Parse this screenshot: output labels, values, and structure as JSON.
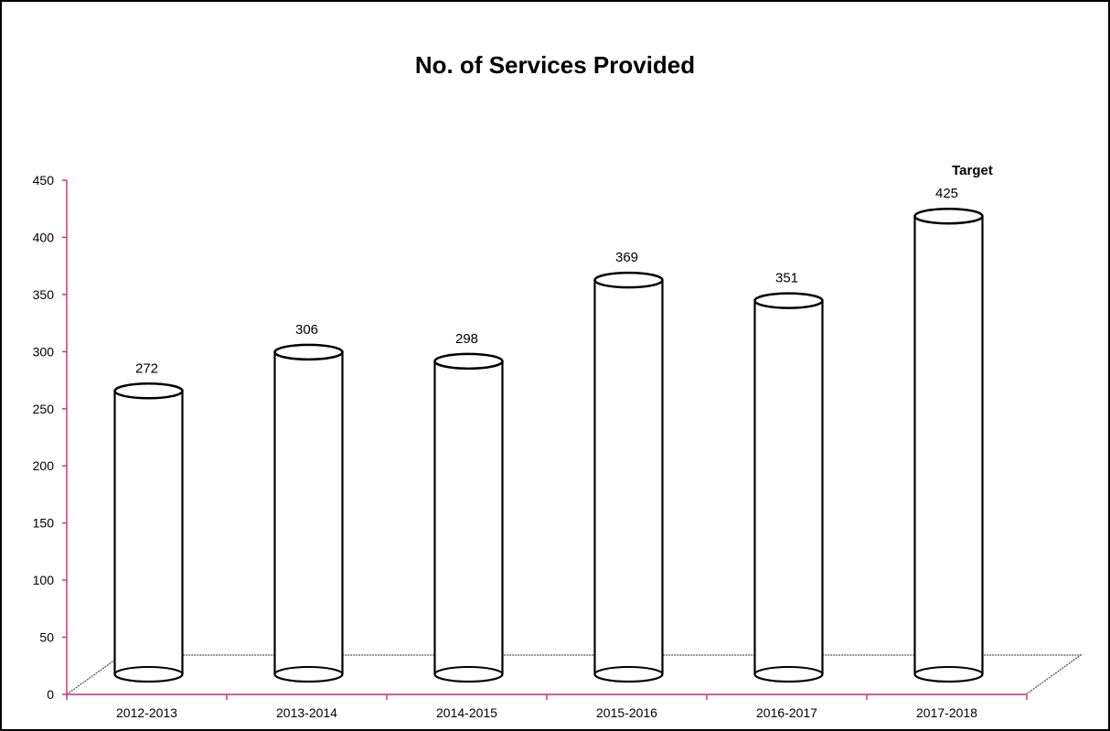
{
  "chart_data": {
    "type": "bar",
    "title": "No. of Services Provided",
    "categories": [
      "2012-2013",
      "2013-2014",
      "2014-2015",
      "2015-2016",
      "2016-2017",
      "2017-2018"
    ],
    "values": [
      272,
      306,
      298,
      369,
      351,
      425
    ],
    "data_labels": [
      "272",
      "306",
      "298",
      "369",
      "351",
      "425"
    ],
    "annotations": [
      {
        "category": "2017-2018",
        "text": "Target"
      }
    ],
    "yticks": [
      "0",
      "50",
      "100",
      "150",
      "200",
      "250",
      "300",
      "350",
      "400",
      "450"
    ],
    "ylim": [
      0,
      450
    ],
    "xlabel": "",
    "ylabel": "",
    "grid": false,
    "legend": "none",
    "bar_style": "3d-cylinder-outline",
    "colors": {
      "outline": "#000000",
      "axis": "#c0407a",
      "fill": "#ffffff"
    }
  }
}
